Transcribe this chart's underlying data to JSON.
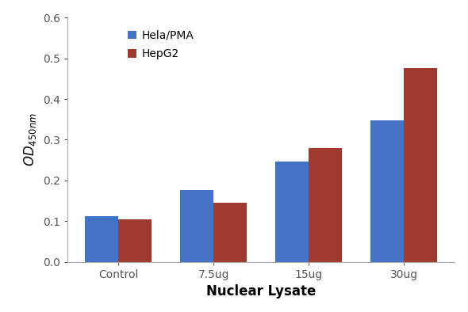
{
  "categories": [
    "Control",
    "7.5ug",
    "15ug",
    "30ug"
  ],
  "hela_pma_values": [
    0.112,
    0.177,
    0.247,
    0.347
  ],
  "hepg2_values": [
    0.105,
    0.145,
    0.279,
    0.476
  ],
  "hela_color": "#4472C4",
  "hepg2_color": "#9E3B2E",
  "ylabel": "OD",
  "ylabel_sub": "450nm",
  "xlabel": "Nuclear Lysate",
  "ylim": [
    0,
    0.6
  ],
  "yticks": [
    0,
    0.1,
    0.2,
    0.3,
    0.4,
    0.5,
    0.6
  ],
  "legend_labels": [
    "Hela/PMA",
    "HepG2"
  ],
  "bar_width": 0.35,
  "background_color": "#ffffff",
  "label_fontsize": 12,
  "tick_fontsize": 10,
  "legend_fontsize": 10
}
